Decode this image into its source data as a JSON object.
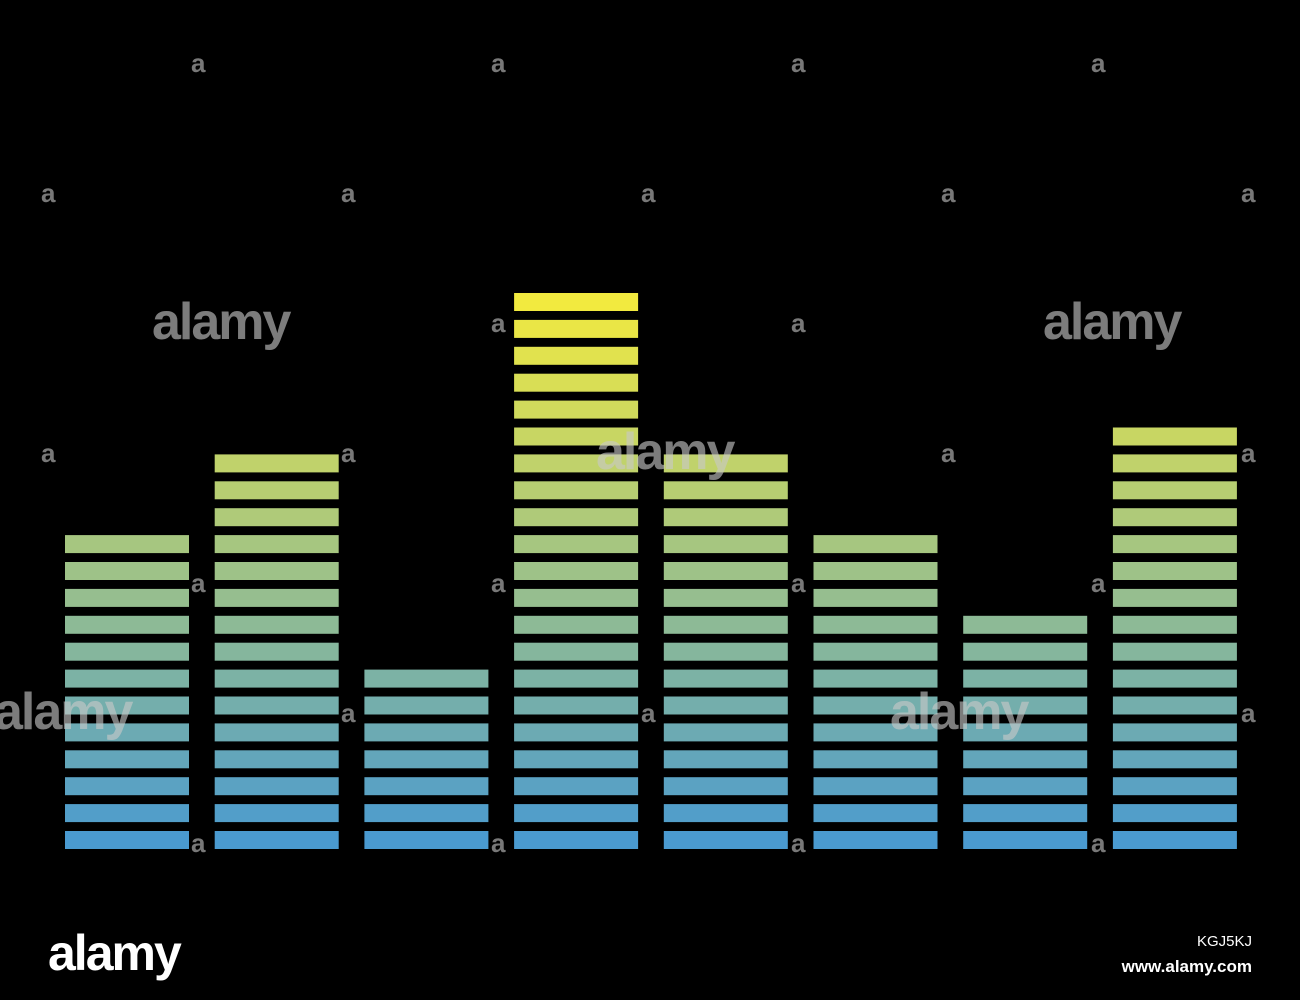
{
  "image": {
    "background": "#000000",
    "segment_color_bottom": "#4a9ad0",
    "segment_color_top": "#f2ea3f"
  },
  "equalizer": {
    "max_segments": 21,
    "bars": [
      {
        "segments": 12
      },
      {
        "segments": 15
      },
      {
        "segments": 7
      },
      {
        "segments": 21
      },
      {
        "segments": 15
      },
      {
        "segments": 12
      },
      {
        "segments": 9
      },
      {
        "segments": 16
      }
    ]
  },
  "watermark": {
    "word": "alamy",
    "tile_glyph": "a"
  },
  "footer": {
    "logo": "alamy",
    "image_id": "KGJ5KJ",
    "url": "www.alamy.com"
  }
}
